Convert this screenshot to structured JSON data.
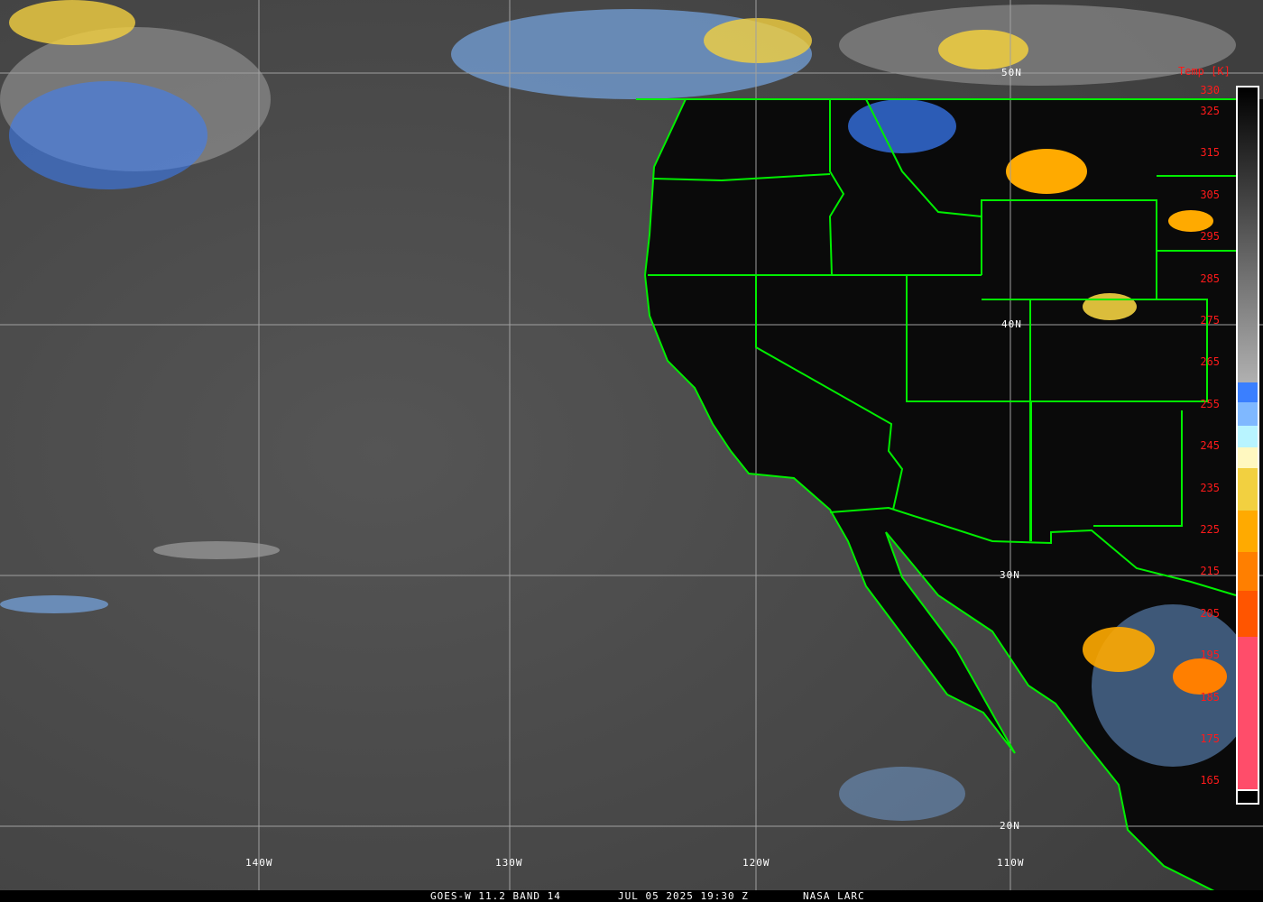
{
  "caption": {
    "satellite": "GOES-W 11.2 BAND 14",
    "datetime": "JUL 05 2025 19:30 Z",
    "source": "NASA LARC"
  },
  "grid_labels": {
    "lon": [
      "140W",
      "130W",
      "120W",
      "110W"
    ],
    "lat": [
      "50N",
      "40N",
      "30N",
      "20N"
    ]
  },
  "colorbar": {
    "title": "Temp [K]",
    "ticks": [
      "330",
      "325",
      "315",
      "305",
      "295",
      "285",
      "275",
      "265",
      "255",
      "245",
      "235",
      "225",
      "215",
      "205",
      "195",
      "185",
      "175",
      "165"
    ],
    "colors": {
      "blue": "#3a7fff",
      "light_blue": "#7fb8ff",
      "cyan": "#b8f4ff",
      "pale_yellow": "#fff8c0",
      "yellow": "#f2d040",
      "orange": "#ffaa00",
      "dark_orange": "#ff7f00",
      "red_orange": "#ff5500",
      "pink": "#ff4d6a"
    }
  },
  "map_colors": {
    "borders": "#00ee00",
    "grid": "#a0a0a0",
    "label": "#ffffff"
  }
}
